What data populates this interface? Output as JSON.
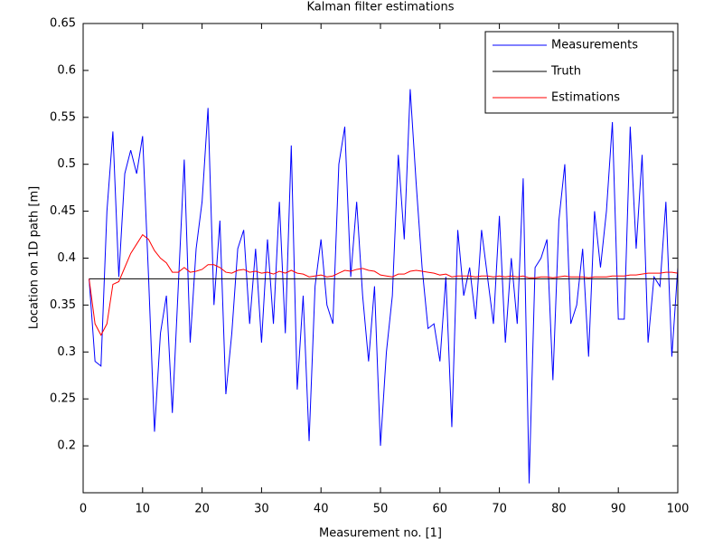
{
  "chart_data": {
    "type": "line",
    "title": "Kalman filter estimations",
    "xlabel": "Measurement no. [1]",
    "ylabel": "Location on 1D path [m]",
    "x": [
      1,
      2,
      3,
      4,
      5,
      6,
      7,
      8,
      9,
      10,
      11,
      12,
      13,
      14,
      15,
      16,
      17,
      18,
      19,
      20,
      21,
      22,
      23,
      24,
      25,
      26,
      27,
      28,
      29,
      30,
      31,
      32,
      33,
      34,
      35,
      36,
      37,
      38,
      39,
      40,
      41,
      42,
      43,
      44,
      45,
      46,
      47,
      48,
      49,
      50,
      51,
      52,
      53,
      54,
      55,
      56,
      57,
      58,
      59,
      60,
      61,
      62,
      63,
      64,
      65,
      66,
      67,
      68,
      69,
      70,
      71,
      72,
      73,
      74,
      75,
      76,
      77,
      78,
      79,
      80,
      81,
      82,
      83,
      84,
      85,
      86,
      87,
      88,
      89,
      90,
      91,
      92,
      93,
      94,
      95,
      96,
      97,
      98,
      99,
      100
    ],
    "series": [
      {
        "name": "Measurements",
        "color": "#0000ff",
        "values": [
          0.378,
          0.29,
          0.285,
          0.45,
          0.535,
          0.38,
          0.49,
          0.515,
          0.49,
          0.53,
          0.38,
          0.215,
          0.32,
          0.36,
          0.235,
          0.37,
          0.505,
          0.31,
          0.41,
          0.46,
          0.56,
          0.35,
          0.44,
          0.255,
          0.32,
          0.41,
          0.43,
          0.33,
          0.41,
          0.31,
          0.42,
          0.33,
          0.46,
          0.32,
          0.52,
          0.26,
          0.36,
          0.205,
          0.37,
          0.42,
          0.35,
          0.33,
          0.5,
          0.54,
          0.38,
          0.46,
          0.36,
          0.29,
          0.37,
          0.2,
          0.3,
          0.36,
          0.51,
          0.42,
          0.58,
          0.48,
          0.39,
          0.325,
          0.33,
          0.29,
          0.38,
          0.22,
          0.43,
          0.36,
          0.39,
          0.335,
          0.43,
          0.38,
          0.33,
          0.445,
          0.31,
          0.4,
          0.33,
          0.485,
          0.16,
          0.39,
          0.4,
          0.42,
          0.27,
          0.44,
          0.5,
          0.33,
          0.35,
          0.41,
          0.295,
          0.45,
          0.39,
          0.45,
          0.545,
          0.335,
          0.335,
          0.54,
          0.41,
          0.51,
          0.31,
          0.38,
          0.37,
          0.46,
          0.295,
          0.39
        ]
      },
      {
        "name": "Truth",
        "color": "#000000",
        "values": [
          0.378,
          0.378,
          0.378,
          0.378,
          0.378,
          0.378,
          0.378,
          0.378,
          0.378,
          0.378,
          0.378,
          0.378,
          0.378,
          0.378,
          0.378,
          0.378,
          0.378,
          0.378,
          0.378,
          0.378,
          0.378,
          0.378,
          0.378,
          0.378,
          0.378,
          0.378,
          0.378,
          0.378,
          0.378,
          0.378,
          0.378,
          0.378,
          0.378,
          0.378,
          0.378,
          0.378,
          0.378,
          0.378,
          0.378,
          0.378,
          0.378,
          0.378,
          0.378,
          0.378,
          0.378,
          0.378,
          0.378,
          0.378,
          0.378,
          0.378,
          0.378,
          0.378,
          0.378,
          0.378,
          0.378,
          0.378,
          0.378,
          0.378,
          0.378,
          0.378,
          0.378,
          0.378,
          0.378,
          0.378,
          0.378,
          0.378,
          0.378,
          0.378,
          0.378,
          0.378,
          0.378,
          0.378,
          0.378,
          0.378,
          0.378,
          0.378,
          0.378,
          0.378,
          0.378,
          0.378,
          0.378,
          0.378,
          0.378,
          0.378,
          0.378,
          0.378,
          0.378,
          0.378,
          0.378,
          0.378,
          0.378,
          0.378,
          0.378,
          0.378,
          0.378,
          0.378,
          0.378,
          0.378,
          0.378,
          0.378
        ]
      },
      {
        "name": "Estimations",
        "color": "#ff0000",
        "values": [
          0.378,
          0.33,
          0.318,
          0.33,
          0.372,
          0.375,
          0.39,
          0.405,
          0.415,
          0.425,
          0.42,
          0.408,
          0.4,
          0.395,
          0.385,
          0.385,
          0.39,
          0.385,
          0.386,
          0.388,
          0.393,
          0.393,
          0.39,
          0.385,
          0.384,
          0.387,
          0.388,
          0.385,
          0.386,
          0.384,
          0.385,
          0.383,
          0.386,
          0.384,
          0.387,
          0.384,
          0.383,
          0.38,
          0.381,
          0.382,
          0.38,
          0.381,
          0.384,
          0.387,
          0.386,
          0.388,
          0.389,
          0.387,
          0.386,
          0.382,
          0.381,
          0.38,
          0.383,
          0.383,
          0.386,
          0.387,
          0.386,
          0.385,
          0.384,
          0.382,
          0.383,
          0.38,
          0.381,
          0.381,
          0.381,
          0.38,
          0.381,
          0.381,
          0.38,
          0.381,
          0.38,
          0.381,
          0.38,
          0.381,
          0.379,
          0.379,
          0.38,
          0.38,
          0.379,
          0.38,
          0.381,
          0.38,
          0.38,
          0.38,
          0.379,
          0.38,
          0.38,
          0.38,
          0.381,
          0.381,
          0.381,
          0.382,
          0.382,
          0.383,
          0.384,
          0.384,
          0.384,
          0.385,
          0.385,
          0.384
        ]
      }
    ],
    "xlim": [
      0,
      100
    ],
    "xticks": [
      0,
      10,
      20,
      30,
      40,
      50,
      60,
      70,
      80,
      90,
      100
    ],
    "ylim": [
      0.15,
      0.65
    ],
    "yticks": [
      0.2,
      0.25,
      0.3,
      0.35,
      0.4,
      0.45,
      0.5,
      0.55,
      0.6,
      0.65
    ],
    "grid": false,
    "legend": "northeast"
  }
}
